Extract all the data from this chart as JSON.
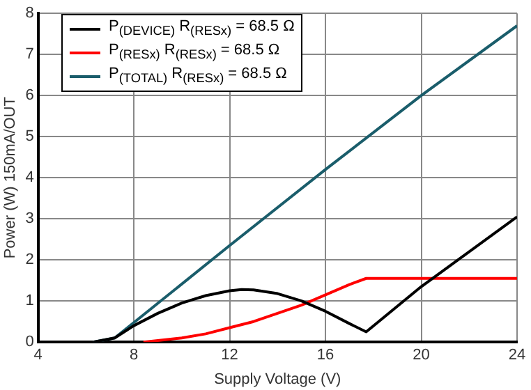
{
  "chart_data": {
    "type": "line",
    "xlabel": "Supply Voltage (V)",
    "ylabel": "Power (W) 150mA/OUT",
    "xlim": [
      4,
      24
    ],
    "xticks": [
      4,
      8,
      12,
      16,
      20,
      24
    ],
    "ylim": [
      0,
      8
    ],
    "yticks": [
      0,
      1,
      2,
      3,
      4,
      5,
      6,
      7,
      8
    ],
    "grid": true,
    "legend": "top left",
    "marker": "none",
    "line_style": "solid",
    "series": [
      {
        "name": "P$_{(DEVICE)}$ R$_{(RESx)}$ = 68.5 Ω",
        "color": "#000000",
        "x": [
          6.3,
          7.2,
          8,
          9,
          10,
          11,
          12,
          12.5,
          13,
          14,
          15,
          16,
          17,
          17.7,
          20,
          24
        ],
        "values": [
          0,
          0.1,
          0.4,
          0.7,
          0.95,
          1.13,
          1.25,
          1.28,
          1.27,
          1.18,
          1.0,
          0.75,
          0.45,
          0.25,
          1.35,
          3.05
        ]
      },
      {
        "name": "P$_{(RESx)}$ R$_{(RESx)}$ = 68.5 Ω",
        "color": "#ff0000",
        "x": [
          8.4,
          10,
          11,
          12,
          13,
          14,
          15,
          16,
          17,
          17.7,
          24
        ],
        "values": [
          0,
          0.1,
          0.2,
          0.35,
          0.5,
          0.7,
          0.9,
          1.15,
          1.4,
          1.55,
          1.55
        ]
      },
      {
        "name": "P$_{(TOTAL)}$ R$_{(RESx)}$ = 68.5 Ω",
        "color": "#1a5d6b",
        "x": [
          6.3,
          7.2,
          12,
          16,
          20,
          24
        ],
        "values": [
          0,
          0.1,
          2.35,
          4.2,
          6,
          7.7
        ]
      }
    ]
  }
}
